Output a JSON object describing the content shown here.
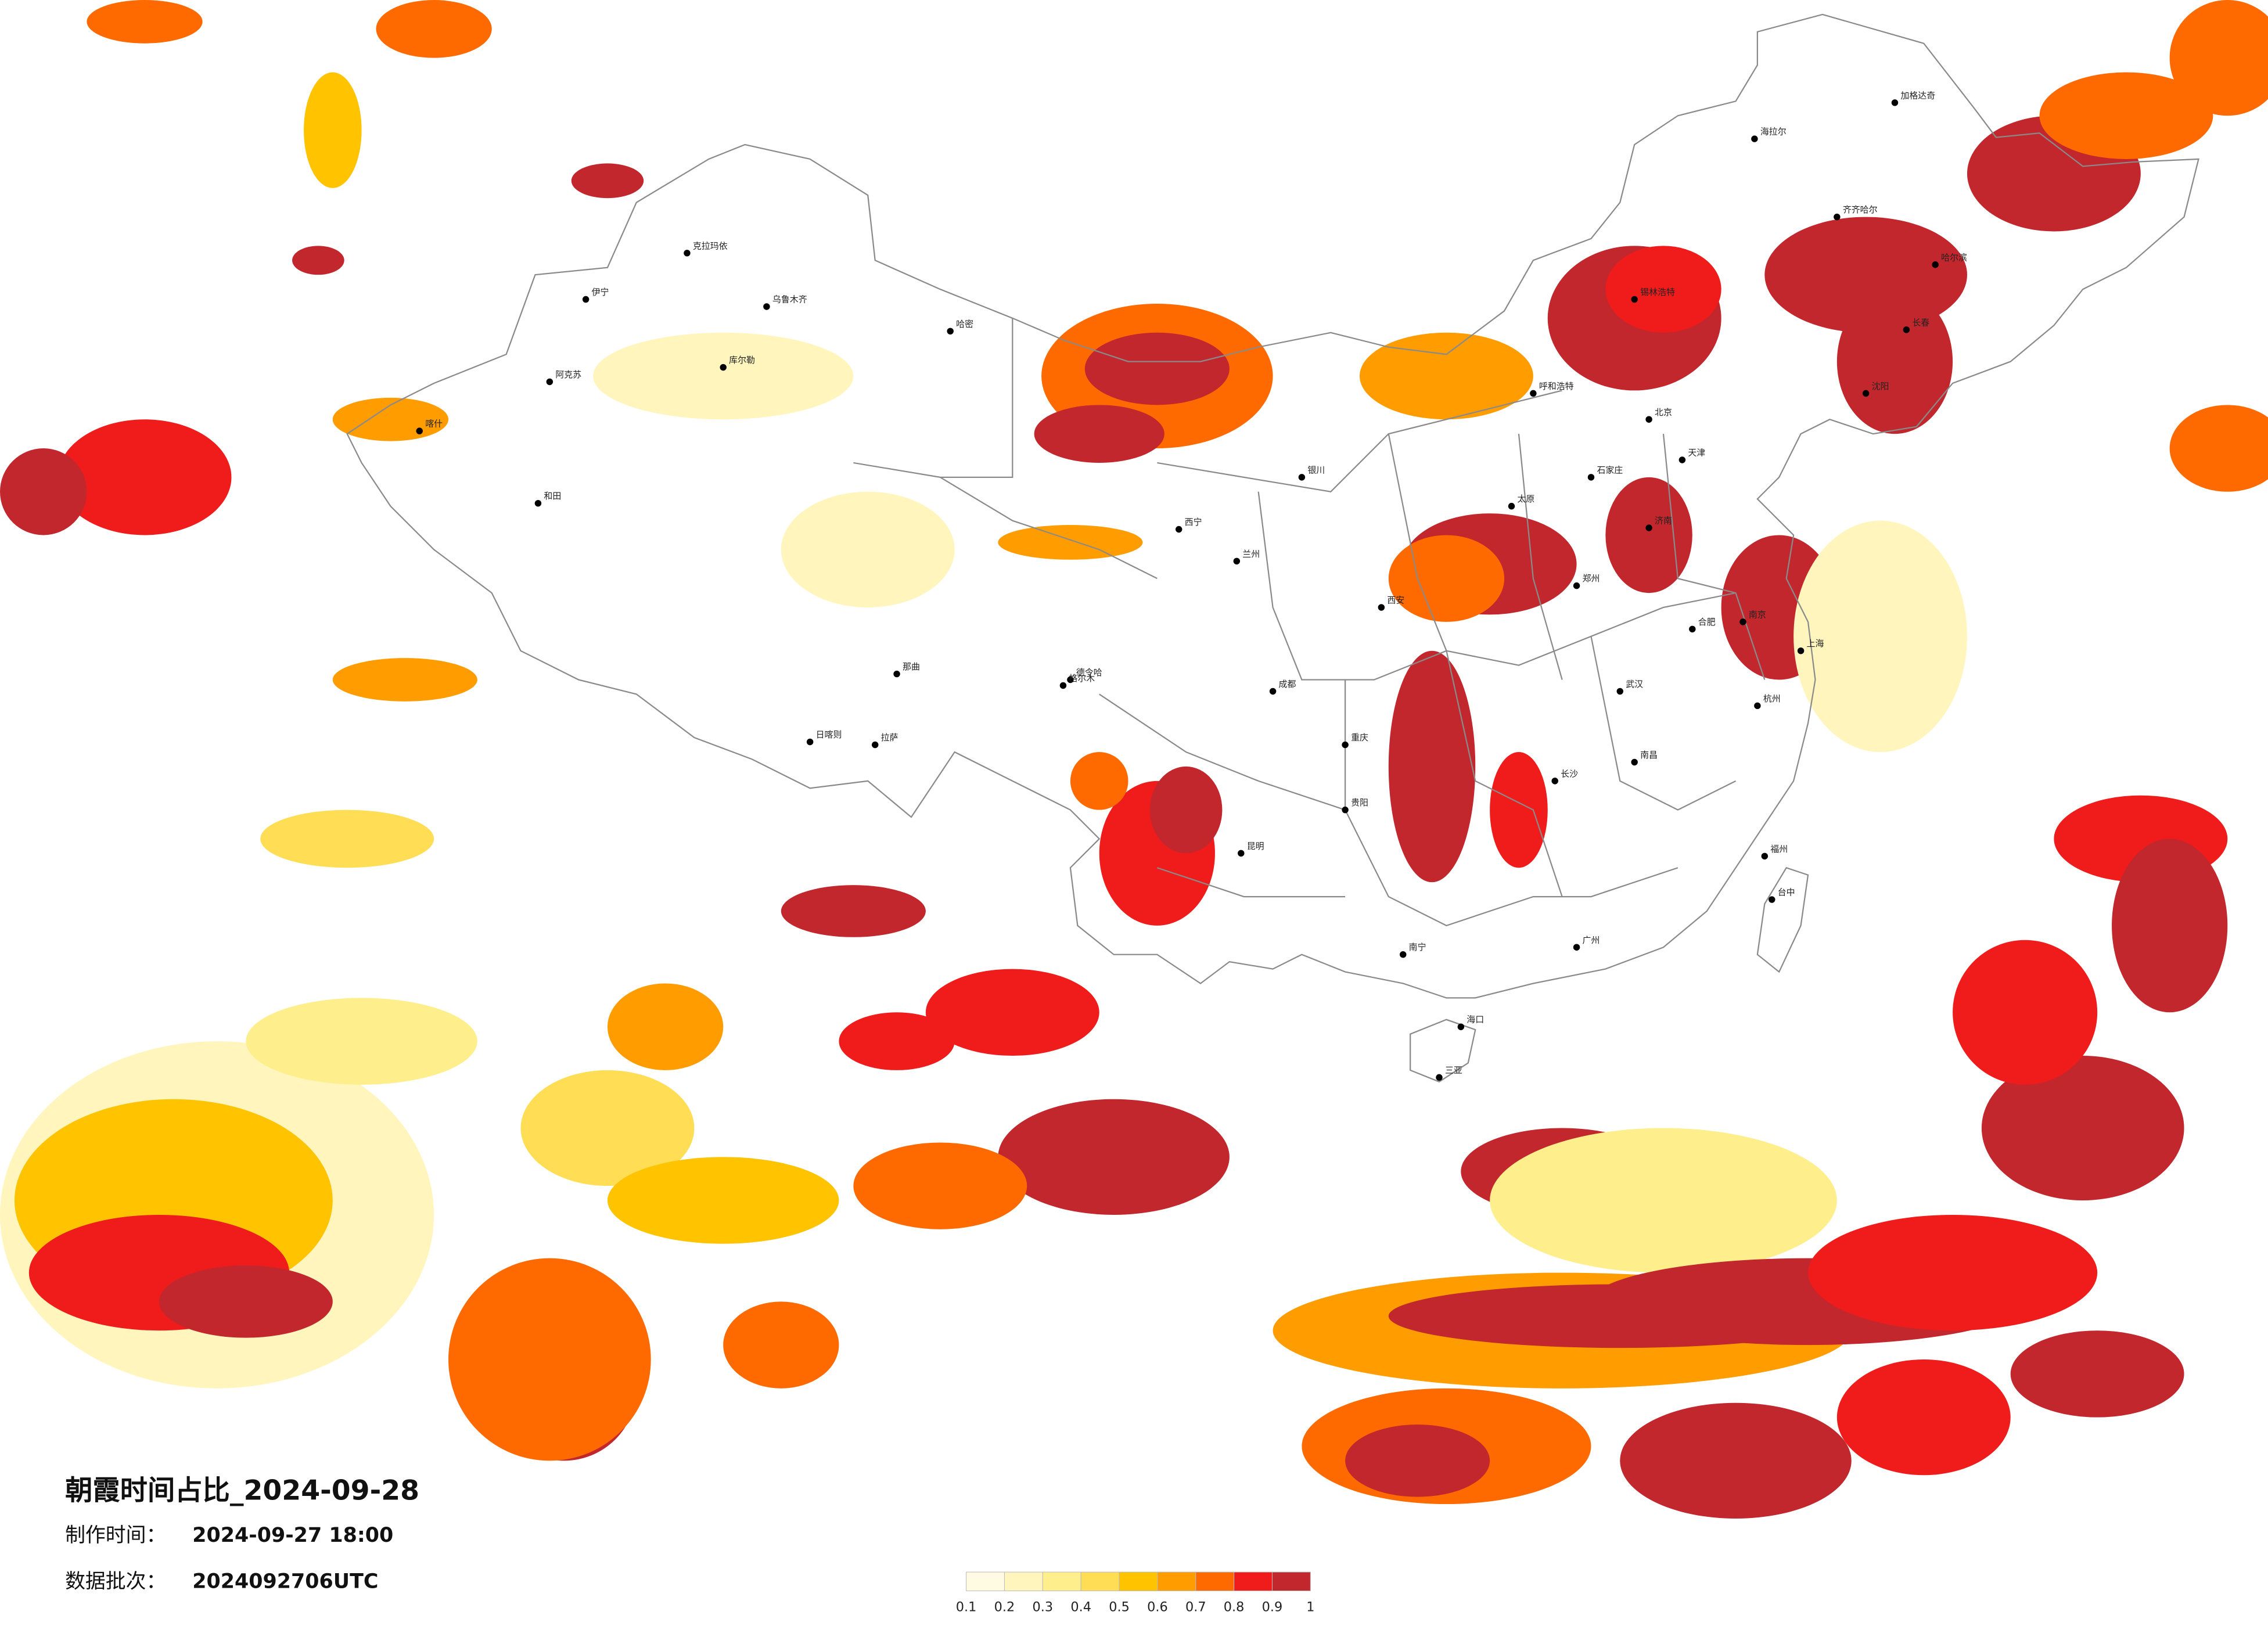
{
  "title": "朝霞时间占比_2024-09-28",
  "production_time": {
    "label": "制作时间：",
    "value": "2024-09-27 18:00"
  },
  "data_batch": {
    "label": "数据批次：",
    "value": "2024092706UTC"
  },
  "colorbar": {
    "ticks": [
      0.1,
      0.2,
      0.3,
      0.4,
      0.5,
      0.6,
      0.7,
      0.8,
      0.9,
      1
    ],
    "colors": [
      "#fffbe3",
      "#fff5bd",
      "#ffee8c",
      "#ffde55",
      "#ffc300",
      "#ff9c00",
      "#ff6a00",
      "#f01c1c",
      "#c1272d"
    ]
  },
  "cities": [
    "海拉尔",
    "加格达奇",
    "齐齐哈尔",
    "哈尔滨",
    "长春",
    "沈阳",
    "锡林浩特",
    "呼和浩特",
    "北京",
    "天津",
    "石家庄",
    "太原",
    "济南",
    "郑州",
    "西安",
    "兰州",
    "西宁",
    "银川",
    "德令哈",
    "克拉玛依",
    "乌鲁木齐",
    "伊宁",
    "阿克苏",
    "喀什",
    "和田",
    "库尔勒",
    "哈密",
    "格尔木",
    "那曲",
    "日喀则",
    "拉萨",
    "成都",
    "重庆",
    "贵阳",
    "昆明",
    "南宁",
    "广州",
    "长沙",
    "武汉",
    "南昌",
    "合肥",
    "南京",
    "上海",
    "杭州",
    "福州",
    "台中",
    "海口",
    "三亚"
  ]
}
